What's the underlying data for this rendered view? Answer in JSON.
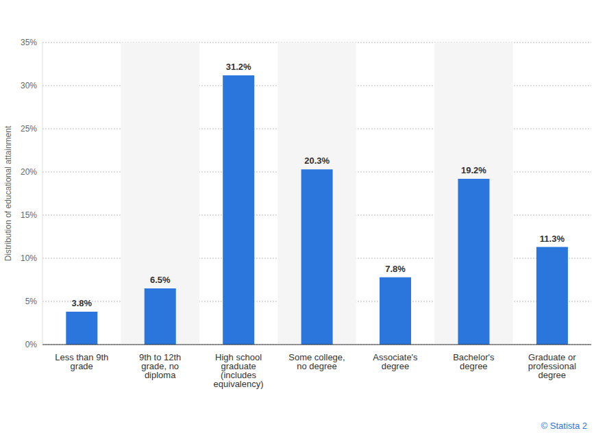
{
  "chart_data": {
    "type": "bar",
    "y_label": "Distribution of educational attainment",
    "categories": [
      "Less than 9th grade",
      "9th to 12th grade, no diploma",
      "High school graduate (includes equivalency)",
      "Some college, no degree",
      "Associate's degree",
      "Bachelor's degree",
      "Graduate or professional degree"
    ],
    "values": [
      3.8,
      6.5,
      31.2,
      20.3,
      7.8,
      19.2,
      11.3
    ],
    "value_labels": [
      "3.8%",
      "6.5%",
      "31.2%",
      "20.3%",
      "7.8%",
      "19.2%",
      "11.3%"
    ],
    "data_labels": true,
    "color": "#2a76dd",
    "ylim": [
      0,
      35
    ],
    "yticks": [
      {
        "value": 0,
        "label": "0%"
      },
      {
        "value": 5,
        "label": "5%"
      },
      {
        "value": 10,
        "label": "10%"
      },
      {
        "value": 15,
        "label": "15%"
      },
      {
        "value": 20,
        "label": "20%"
      },
      {
        "value": 25,
        "label": "25%"
      },
      {
        "value": 30,
        "label": "30%"
      },
      {
        "value": 35,
        "label": "35%"
      }
    ],
    "grid": true,
    "source": "© Statista 2"
  }
}
